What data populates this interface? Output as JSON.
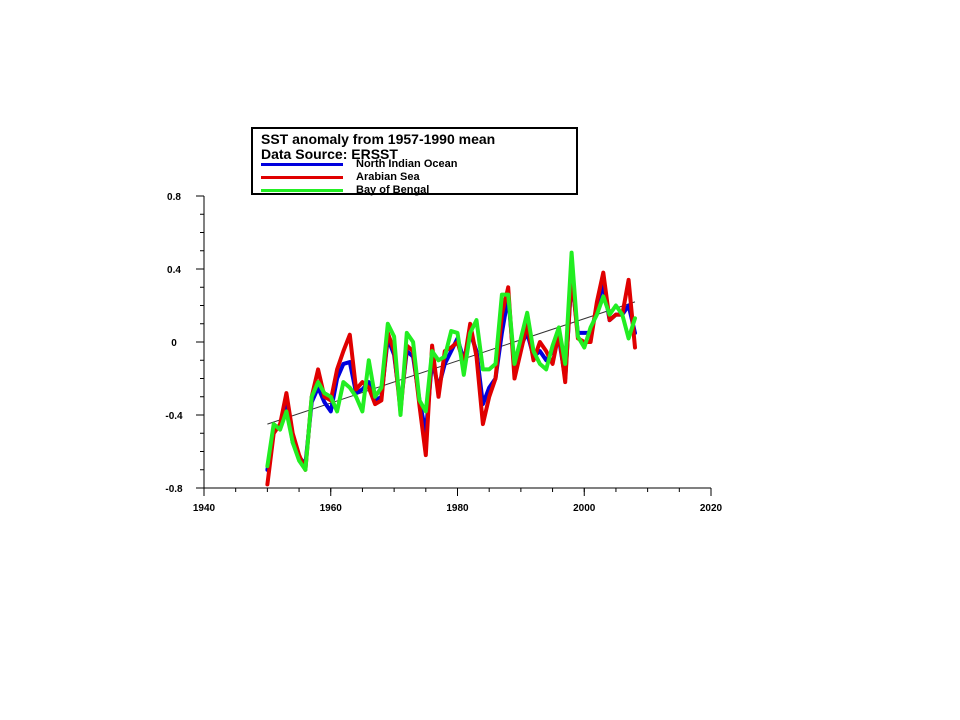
{
  "chart_data": {
    "type": "line",
    "title": "SST anomaly from 1957-1990 mean",
    "subtitle": "Data Source: ERSST",
    "xlim": [
      1940,
      2020
    ],
    "ylim": [
      -0.8,
      0.8
    ],
    "x_ticks": [
      1940,
      1960,
      1980,
      2000,
      2020
    ],
    "y_ticks": [
      -0.8,
      -0.4,
      0,
      0.4,
      0.8
    ],
    "x_tick_labels": [
      "1940",
      "1960",
      "1980",
      "2000",
      "2020"
    ],
    "y_tick_labels": [
      "-0.8",
      "-0.4",
      "0",
      "0.4",
      "0.8"
    ],
    "grid": false,
    "legend_position": "top",
    "x": [
      1950,
      1951,
      1952,
      1953,
      1954,
      1955,
      1956,
      1957,
      1958,
      1959,
      1960,
      1961,
      1962,
      1963,
      1964,
      1965,
      1966,
      1967,
      1968,
      1969,
      1970,
      1971,
      1972,
      1973,
      1974,
      1975,
      1976,
      1977,
      1978,
      1979,
      1980,
      1981,
      1982,
      1983,
      1984,
      1985,
      1986,
      1987,
      1988,
      1989,
      1990,
      1991,
      1992,
      1993,
      1994,
      1995,
      1996,
      1997,
      1998,
      1999,
      2000,
      2001,
      2002,
      2003,
      2004,
      2005,
      2006,
      2007,
      2008
    ],
    "series": [
      {
        "name": "North Indian Ocean",
        "color": "#0000dd",
        "values": [
          -0.7,
          -0.48,
          -0.47,
          -0.33,
          -0.55,
          -0.63,
          -0.67,
          -0.33,
          -0.25,
          -0.33,
          -0.38,
          -0.2,
          -0.12,
          -0.11,
          -0.28,
          -0.26,
          -0.22,
          -0.32,
          -0.3,
          0.02,
          -0.07,
          -0.35,
          -0.05,
          -0.08,
          -0.32,
          -0.5,
          -0.1,
          -0.25,
          -0.12,
          -0.05,
          0.02,
          -0.1,
          0.05,
          -0.05,
          -0.34,
          -0.25,
          -0.2,
          0.05,
          0.25,
          -0.15,
          -0.02,
          0.05,
          -0.08,
          -0.05,
          -0.1,
          -0.05,
          0.02,
          -0.2,
          0.35,
          0.05,
          0.05,
          0.05,
          0.18,
          0.32,
          0.12,
          0.15,
          0.15,
          0.2,
          0.05
        ]
      },
      {
        "name": "Arabian Sea",
        "color": "#e00000",
        "values": [
          -0.78,
          -0.5,
          -0.45,
          -0.28,
          -0.5,
          -0.62,
          -0.7,
          -0.3,
          -0.15,
          -0.3,
          -0.32,
          -0.15,
          -0.05,
          0.04,
          -0.26,
          -0.22,
          -0.25,
          -0.34,
          -0.32,
          0.05,
          -0.05,
          -0.38,
          -0.02,
          -0.05,
          -0.35,
          -0.62,
          -0.02,
          -0.3,
          -0.05,
          -0.03,
          0.0,
          -0.12,
          0.1,
          -0.08,
          -0.45,
          -0.3,
          -0.2,
          0.15,
          0.3,
          -0.2,
          -0.05,
          0.1,
          -0.1,
          0.0,
          -0.05,
          -0.12,
          0.05,
          -0.22,
          0.38,
          0.02,
          0.0,
          0.0,
          0.22,
          0.38,
          0.12,
          0.15,
          0.15,
          0.34,
          -0.03
        ]
      },
      {
        "name": "Bay of Bengal",
        "color": "#22ee22",
        "values": [
          -0.68,
          -0.45,
          -0.48,
          -0.38,
          -0.55,
          -0.65,
          -0.7,
          -0.3,
          -0.22,
          -0.28,
          -0.3,
          -0.38,
          -0.22,
          -0.25,
          -0.3,
          -0.38,
          -0.1,
          -0.3,
          -0.25,
          0.1,
          0.03,
          -0.4,
          0.05,
          0.0,
          -0.32,
          -0.38,
          -0.05,
          -0.1,
          -0.08,
          0.06,
          0.05,
          -0.18,
          0.05,
          0.12,
          -0.15,
          -0.15,
          -0.12,
          0.26,
          0.26,
          -0.12,
          0.02,
          0.16,
          -0.05,
          -0.12,
          -0.15,
          -0.02,
          0.08,
          -0.12,
          0.49,
          0.03,
          -0.03,
          0.08,
          0.15,
          0.25,
          0.15,
          0.2,
          0.15,
          0.02,
          0.13
        ]
      }
    ],
    "trend": {
      "x": [
        1950,
        2008
      ],
      "y": [
        -0.45,
        0.22
      ],
      "color": "#333333"
    }
  }
}
